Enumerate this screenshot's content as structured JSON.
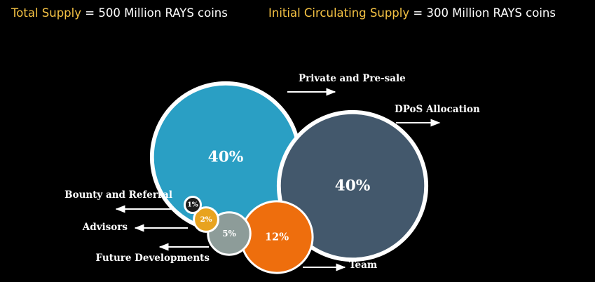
{
  "header": {
    "items": [
      {
        "key": "Total Supply",
        "text": "= 500 Million RAYS coins"
      },
      {
        "key": "Initial Circulating Supply",
        "text": "= 300 Million RAYS coins"
      }
    ]
  },
  "chart_data": {
    "type": "bubble",
    "categories": [
      "Private and Pre-sale",
      "DPoS Allocation",
      "Team",
      "Future Developments",
      "Advisors",
      "Bounty and Referral"
    ],
    "values": [
      40,
      40,
      12,
      5,
      2,
      1
    ],
    "value_labels": [
      "40%",
      "40%",
      "12%",
      "5%",
      "2%",
      "1%"
    ],
    "colors": [
      "#2a9fc4",
      "#43586c",
      "#ee6e0d",
      "#8d9c99",
      "#e8a31f",
      "#1c1c1c"
    ]
  }
}
